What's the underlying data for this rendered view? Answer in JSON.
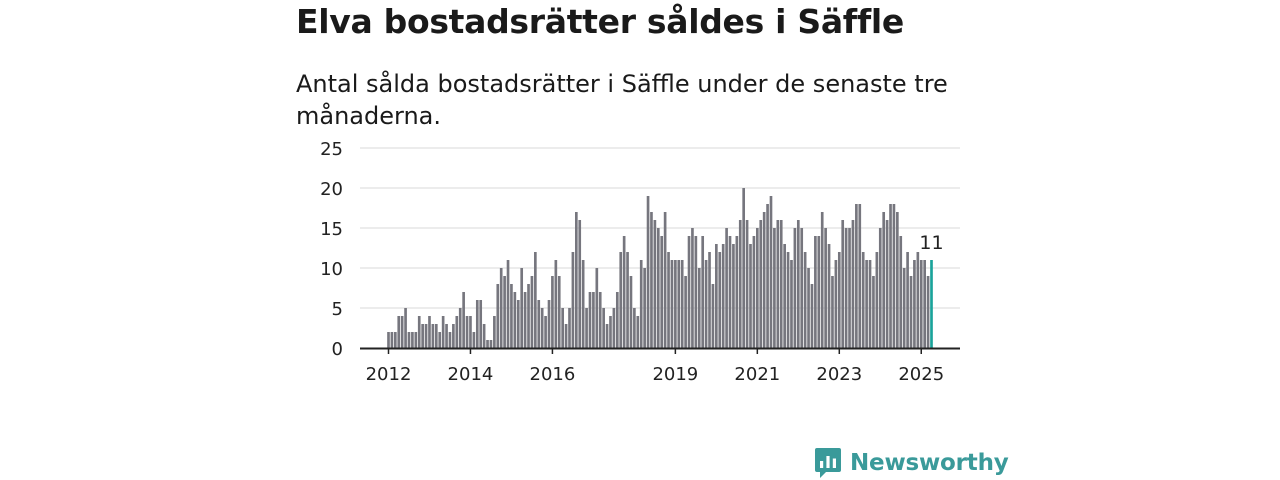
{
  "title": "Elva bostadsrätter såldes i Säffle",
  "subtitle": "Antal sålda bostadsrätter i Säffle under de senaste tre månaderna.",
  "brand": {
    "name": "Newsworthy",
    "color": "#3a9a9a",
    "icon": "newsworthy-logo-icon"
  },
  "colors": {
    "bar": "#76767e",
    "highlight": "#1aa39a",
    "grid": "#d9d9d9",
    "axis": "#222222"
  },
  "chart_data": {
    "type": "bar",
    "ylim": [
      0,
      25
    ],
    "y_ticks": [
      0,
      5,
      10,
      15,
      20,
      25
    ],
    "x_ticks": [
      "2012",
      "2014",
      "2016",
      "2019",
      "2021",
      "2023",
      "2025"
    ],
    "grid": true,
    "last_value_label": "11",
    "series": [
      {
        "values": [
          2,
          2,
          2,
          4,
          4,
          5,
          2,
          2,
          2,
          4,
          3,
          3,
          4,
          3,
          3,
          2,
          4,
          3,
          2,
          3,
          4,
          5,
          7,
          4,
          4,
          2,
          6,
          6,
          3,
          1,
          1,
          4,
          8,
          10,
          9,
          11,
          8,
          7,
          6,
          10,
          7,
          8,
          9,
          12,
          6,
          5,
          4,
          6,
          9,
          11,
          9,
          5,
          3,
          5,
          12,
          17,
          16,
          11,
          5,
          7,
          7,
          10,
          7,
          5,
          3,
          4,
          5,
          7,
          12,
          14,
          12,
          9,
          5,
          4,
          11,
          10,
          19,
          17,
          16,
          15,
          14,
          17,
          12,
          11,
          11,
          11,
          11,
          9,
          14,
          15,
          14,
          10,
          14,
          11,
          12,
          8,
          13,
          12,
          13,
          15,
          14,
          13,
          14,
          16,
          20,
          16,
          13,
          14,
          15,
          16,
          17,
          18,
          19,
          15,
          16,
          16,
          13,
          12,
          11,
          15,
          16,
          15,
          12,
          10,
          8,
          14,
          14,
          17,
          15,
          13,
          9,
          11,
          12,
          16,
          15,
          15,
          16,
          18,
          18,
          12,
          11,
          11,
          9,
          12,
          15,
          17,
          16,
          18,
          18,
          17,
          14,
          10,
          12,
          9,
          11,
          12,
          11,
          11,
          9,
          11
        ],
        "highlight_last": true
      }
    ]
  }
}
